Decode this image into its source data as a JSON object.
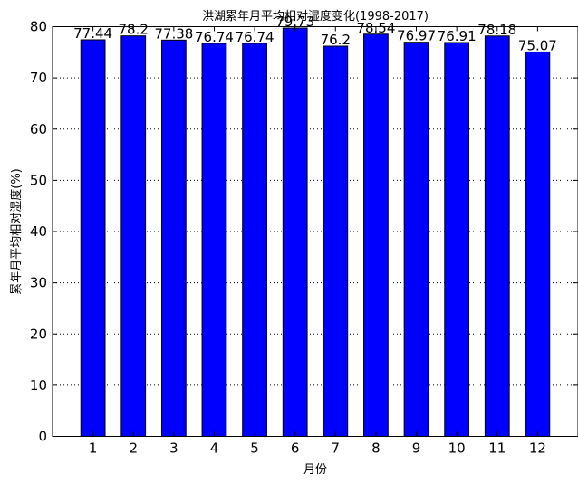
{
  "chart_data": {
    "type": "bar",
    "title": "洪湖累年月平均相对湿度变化(1998-2017)",
    "xlabel": "月份",
    "ylabel": "累年月平均相对湿度(%)",
    "categories": [
      "1",
      "2",
      "3",
      "4",
      "5",
      "6",
      "7",
      "8",
      "9",
      "10",
      "11",
      "12"
    ],
    "values": [
      77.44,
      78.2,
      77.38,
      76.74,
      76.74,
      79.73,
      76.2,
      78.54,
      76.97,
      76.91,
      78.18,
      75.07
    ],
    "value_labels": [
      "77.44",
      "78.2",
      "77.38",
      "76.74",
      "76.74",
      "79.73",
      "76.2",
      "78.54",
      "76.97",
      "76.91",
      "78.18",
      "75.07"
    ],
    "ylim": [
      0,
      80
    ],
    "xlim": [
      0,
      13
    ],
    "yticks": [
      0,
      10,
      20,
      30,
      40,
      50,
      60,
      70,
      80
    ],
    "ytick_labels": [
      "0",
      "10",
      "20",
      "30",
      "40",
      "50",
      "60",
      "70",
      "80"
    ],
    "grid": "horizontal-dotted",
    "legend": "none",
    "colors": {
      "bar": "#0000ff",
      "edge": "#000000",
      "grid": "#000000",
      "background": "#ffffff"
    }
  }
}
